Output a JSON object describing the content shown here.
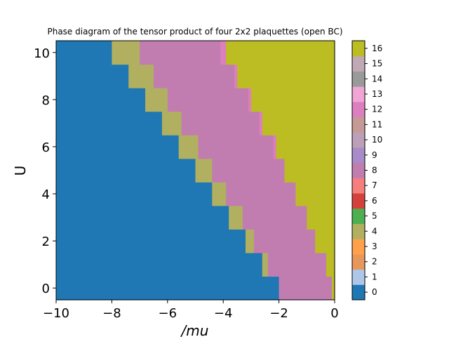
{
  "chart_data": {
    "type": "heatmap",
    "title": "Phase diagram of the tensor product of four 2x2 plaquettes (open BC)",
    "xlabel": "/mu",
    "ylabel": "U",
    "xlim": [
      -10,
      0
    ],
    "ylim": [
      -0.5,
      10.5
    ],
    "x_ticks": [
      "−10",
      "−8",
      "−6",
      "−4",
      "−2",
      "0"
    ],
    "x_tick_values": [
      -10,
      -8,
      -6,
      -4,
      -2,
      0
    ],
    "y_ticks": [
      "0",
      "2",
      "4",
      "6",
      "8",
      "10"
    ],
    "y_tick_values": [
      0,
      2,
      4,
      6,
      8,
      10
    ],
    "grid": false,
    "colorbar": {
      "ticks": [
        "0",
        "1",
        "2",
        "3",
        "4",
        "5",
        "6",
        "7",
        "8",
        "9",
        "10",
        "11",
        "12",
        "13",
        "14",
        "15",
        "16"
      ],
      "colors": [
        "#1f77b4",
        "#aec7e8",
        "#e8975a",
        "#ffa04a",
        "#b0b060",
        "#4caf50",
        "#d4413c",
        "#f47f7c",
        "#c27db0",
        "#a88bc8",
        "#bba0b8",
        "#c59a96",
        "#dc7fbf",
        "#f0a5d5",
        "#9a9a9a",
        "#c1a8b5",
        "#bcbd22"
      ]
    },
    "row_values": [
      0,
      1,
      2,
      3,
      4,
      5,
      6,
      7,
      8,
      9,
      10
    ],
    "rows": [
      {
        "U": 0,
        "segments": [
          [
            -10,
            -2,
            0
          ],
          [
            -2,
            -0.1,
            8
          ],
          [
            -0.1,
            0,
            16
          ]
        ]
      },
      {
        "U": 1,
        "segments": [
          [
            -10,
            -2.6,
            0
          ],
          [
            -2.6,
            -2.4,
            4
          ],
          [
            -2.4,
            -0.3,
            8
          ],
          [
            -0.3,
            0,
            16
          ]
        ]
      },
      {
        "U": 2,
        "segments": [
          [
            -10,
            -3.2,
            0
          ],
          [
            -3.2,
            -2.9,
            4
          ],
          [
            -2.9,
            -0.7,
            8
          ],
          [
            -0.7,
            0,
            16
          ]
        ]
      },
      {
        "U": 3,
        "segments": [
          [
            -10,
            -3.8,
            0
          ],
          [
            -3.8,
            -3.3,
            4
          ],
          [
            -3.3,
            -1.0,
            8
          ],
          [
            -1.0,
            0,
            16
          ]
        ]
      },
      {
        "U": 4,
        "segments": [
          [
            -10,
            -4.4,
            0
          ],
          [
            -4.4,
            -3.9,
            4
          ],
          [
            -3.9,
            -1.4,
            8
          ],
          [
            -1.4,
            0,
            16
          ]
        ]
      },
      {
        "U": 5,
        "segments": [
          [
            -10,
            -5.0,
            0
          ],
          [
            -5.0,
            -4.4,
            4
          ],
          [
            -4.4,
            -1.8,
            8
          ],
          [
            -1.8,
            0,
            16
          ]
        ]
      },
      {
        "U": 6,
        "segments": [
          [
            -10,
            -5.6,
            0
          ],
          [
            -5.6,
            -4.9,
            4
          ],
          [
            -4.9,
            -2.2,
            8
          ],
          [
            -2.2,
            -2.1,
            12
          ],
          [
            -2.1,
            0,
            16
          ]
        ]
      },
      {
        "U": 7,
        "segments": [
          [
            -10,
            -6.2,
            0
          ],
          [
            -6.2,
            -5.5,
            4
          ],
          [
            -5.5,
            -2.7,
            8
          ],
          [
            -2.7,
            -2.6,
            12
          ],
          [
            -2.6,
            0,
            16
          ]
        ]
      },
      {
        "U": 8,
        "segments": [
          [
            -10,
            -6.8,
            0
          ],
          [
            -6.8,
            -6.0,
            4
          ],
          [
            -6.0,
            -3.1,
            8
          ],
          [
            -3.1,
            -3.0,
            12
          ],
          [
            -3.0,
            0,
            16
          ]
        ]
      },
      {
        "U": 9,
        "segments": [
          [
            -10,
            -7.4,
            0
          ],
          [
            -7.4,
            -6.5,
            4
          ],
          [
            -6.5,
            -3.6,
            8
          ],
          [
            -3.6,
            -3.5,
            12
          ],
          [
            -3.5,
            0,
            16
          ]
        ]
      },
      {
        "U": 10,
        "segments": [
          [
            -10,
            -8.0,
            0
          ],
          [
            -8.0,
            -7.0,
            4
          ],
          [
            -7.0,
            -4.1,
            8
          ],
          [
            -4.1,
            -3.9,
            12
          ],
          [
            -3.9,
            0,
            16
          ]
        ]
      }
    ]
  }
}
